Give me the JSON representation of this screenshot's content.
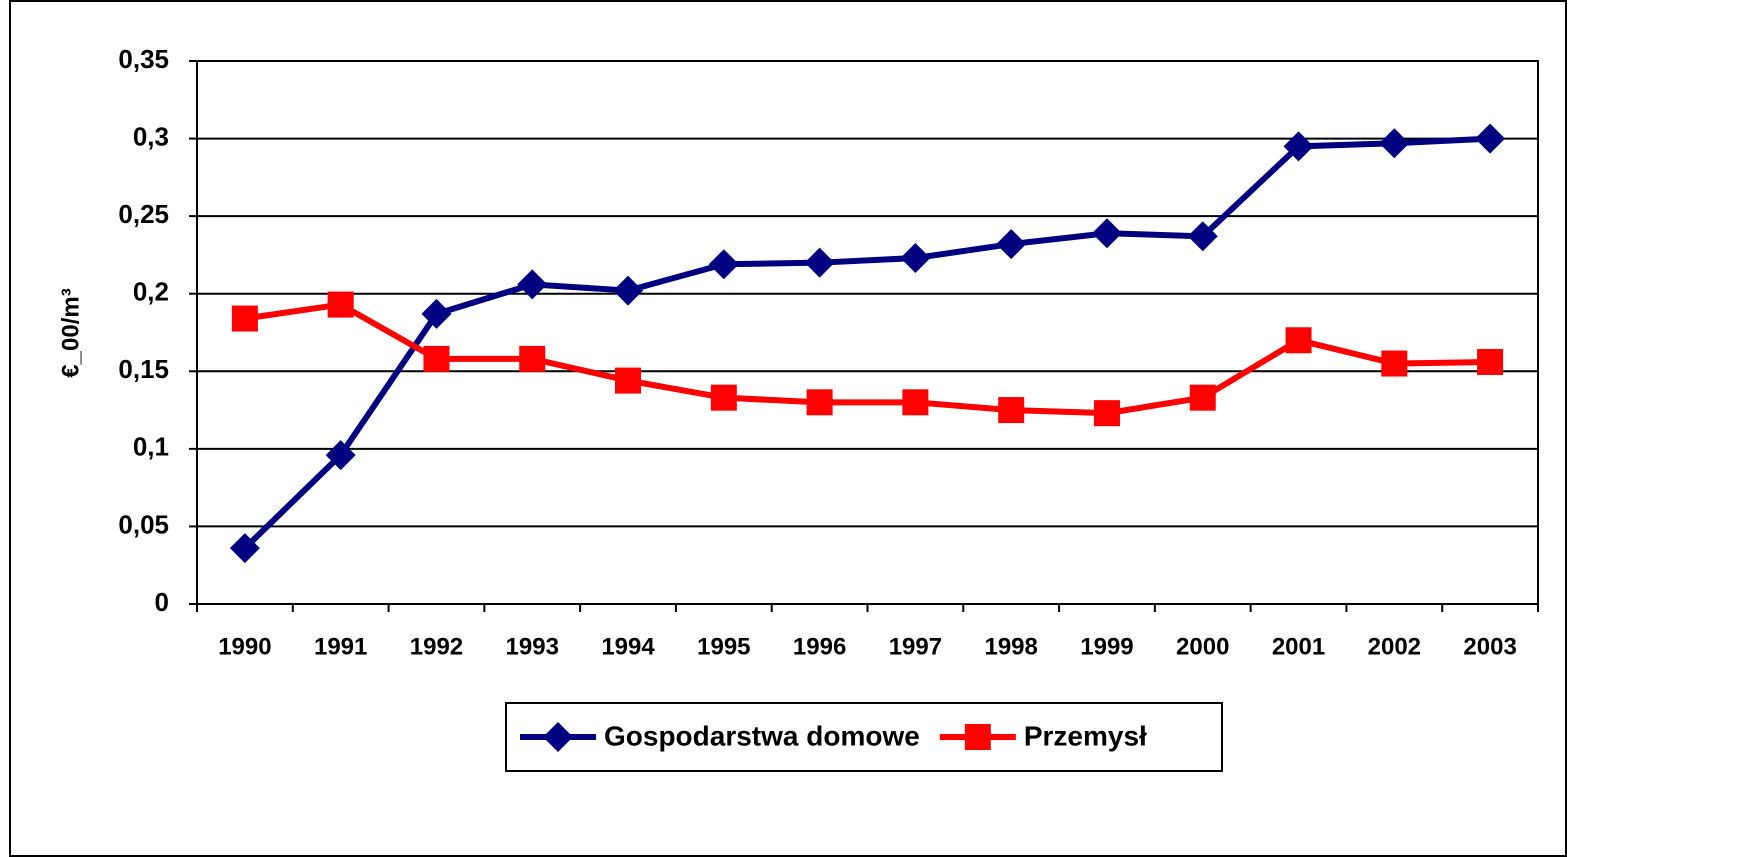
{
  "chart_data": {
    "type": "line",
    "ylabel": "€_00/m³",
    "categories": [
      "1990",
      "1991",
      "1992",
      "1993",
      "1994",
      "1995",
      "1996",
      "1997",
      "1998",
      "1999",
      "2000",
      "2001",
      "2002",
      "2003"
    ],
    "series": [
      {
        "name": "Gospodarstwa domowe",
        "color": "#000080",
        "marker": "diamond",
        "values": [
          0.036,
          0.096,
          0.187,
          0.206,
          0.202,
          0.219,
          0.22,
          0.223,
          0.232,
          0.239,
          0.237,
          0.295,
          0.297,
          0.3
        ]
      },
      {
        "name": "Przemysł",
        "color": "#ff0000",
        "marker": "square",
        "values": [
          0.184,
          0.193,
          0.158,
          0.158,
          0.144,
          0.133,
          0.13,
          0.13,
          0.125,
          0.123,
          0.133,
          0.17,
          0.155,
          0.156
        ]
      }
    ],
    "ylim": [
      0,
      0.35
    ],
    "yticks": [
      0,
      {
        "value": 0.05,
        "label": "0,05"
      },
      {
        "value": 0.1,
        "label": "0,1"
      },
      {
        "value": 0.15,
        "label": "0,15"
      },
      {
        "value": 0.2,
        "label": "0,2"
      },
      {
        "value": 0.25,
        "label": "0,25"
      },
      {
        "value": 0.3,
        "label": "0,3"
      },
      {
        "value": 0.35,
        "label": "0,35"
      }
    ],
    "grid": true,
    "legend": "bottom"
  }
}
